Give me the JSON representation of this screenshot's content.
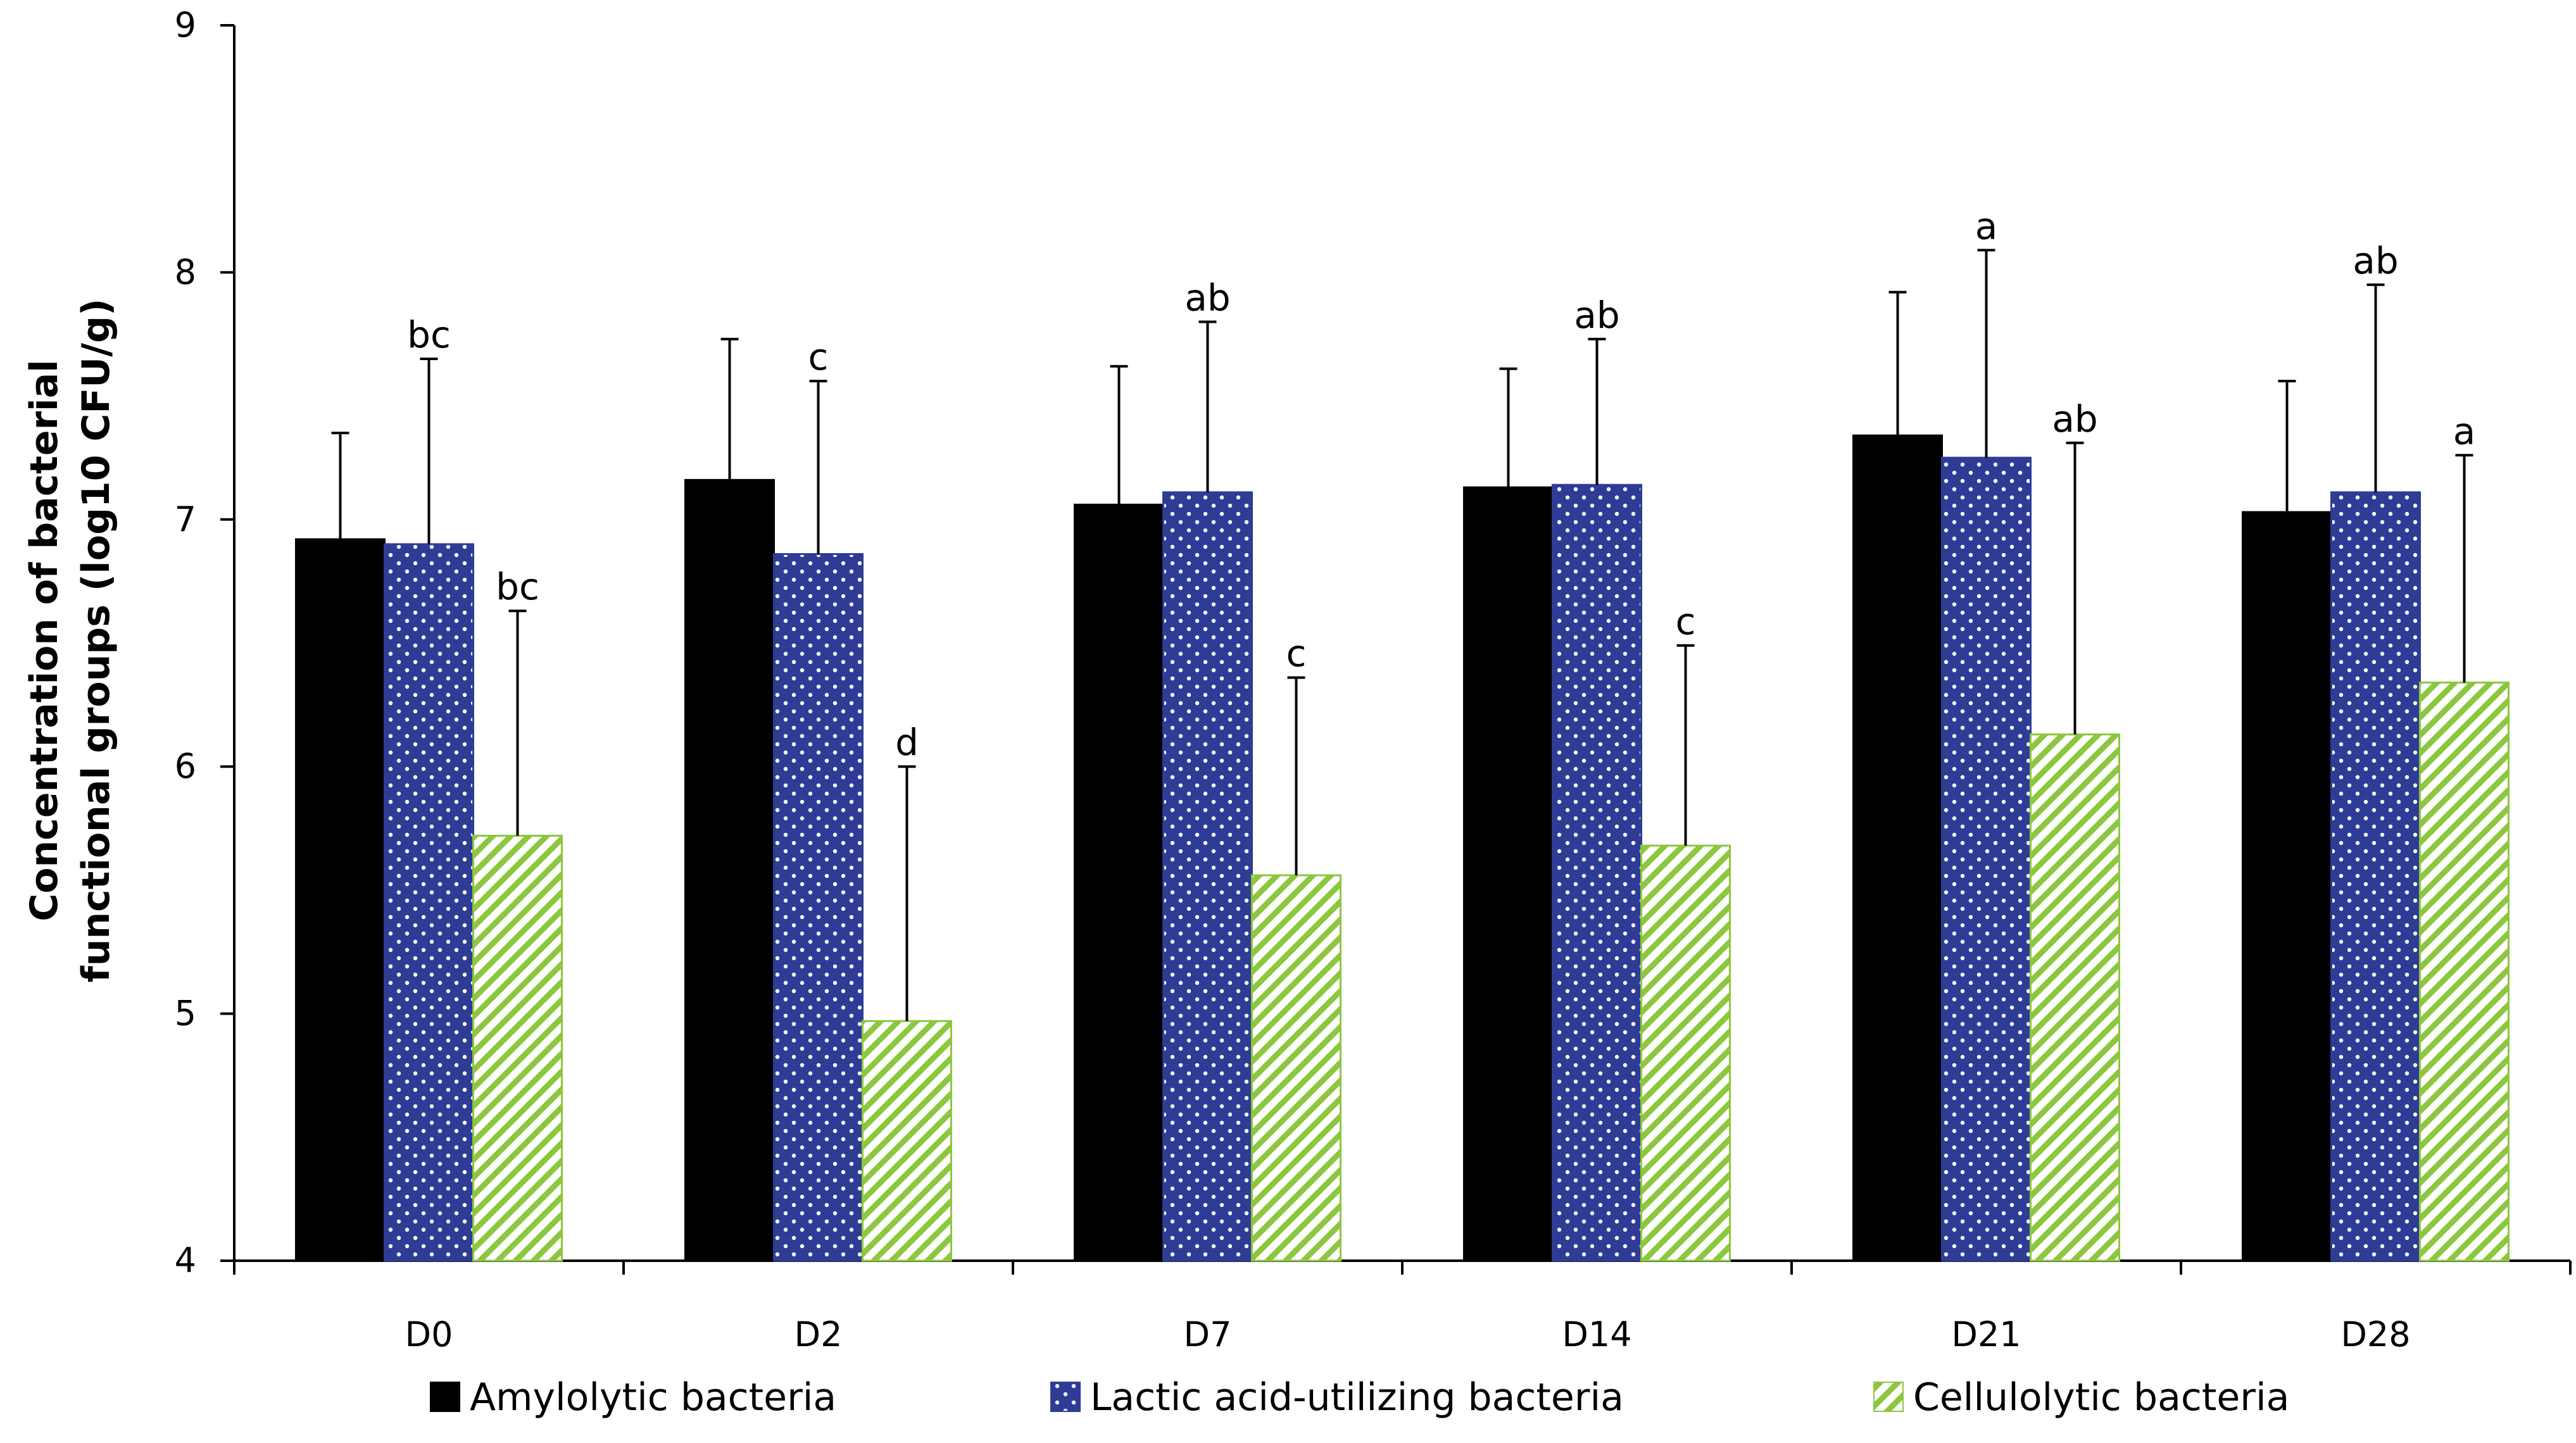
{
  "chart_data": {
    "type": "bar",
    "title": "",
    "xlabel": "",
    "ylabel_lines": [
      "Concentration of  bacterial",
      "functional groups (log10 CFU/g)"
    ],
    "ylim": [
      4,
      9
    ],
    "yticks": [
      4,
      5,
      6,
      7,
      8,
      9
    ],
    "categories": [
      "D0",
      "D2",
      "D7",
      "D14",
      "D21",
      "D28"
    ],
    "series": [
      {
        "name": "Amylolytic bacteria",
        "pattern": "solid",
        "color": "#000000",
        "values": [
          6.92,
          7.16,
          7.06,
          7.13,
          7.34,
          7.03
        ],
        "errors": [
          0.43,
          0.57,
          0.56,
          0.48,
          0.58,
          0.53
        ],
        "labels": [
          "",
          "",
          "",
          "",
          "",
          ""
        ]
      },
      {
        "name": "Lactic acid-utilizing bacteria",
        "pattern": "dots",
        "color": "#2E3C96",
        "values": [
          6.9,
          6.86,
          7.11,
          7.14,
          7.25,
          7.11
        ],
        "errors": [
          0.75,
          0.7,
          0.69,
          0.59,
          0.84,
          0.84
        ],
        "labels": [
          "bc",
          "c",
          "ab",
          "ab",
          "a",
          "ab"
        ]
      },
      {
        "name": "Cellulolytic bacteria",
        "pattern": "diagonal",
        "color": "#8DC63F",
        "values": [
          5.72,
          4.97,
          5.56,
          5.68,
          6.13,
          6.34
        ],
        "errors": [
          0.91,
          1.03,
          0.8,
          0.81,
          1.18,
          0.92
        ],
        "labels": [
          "bc",
          "d",
          "c",
          "c",
          "ab",
          "a"
        ]
      }
    ],
    "legend_position": "bottom"
  }
}
